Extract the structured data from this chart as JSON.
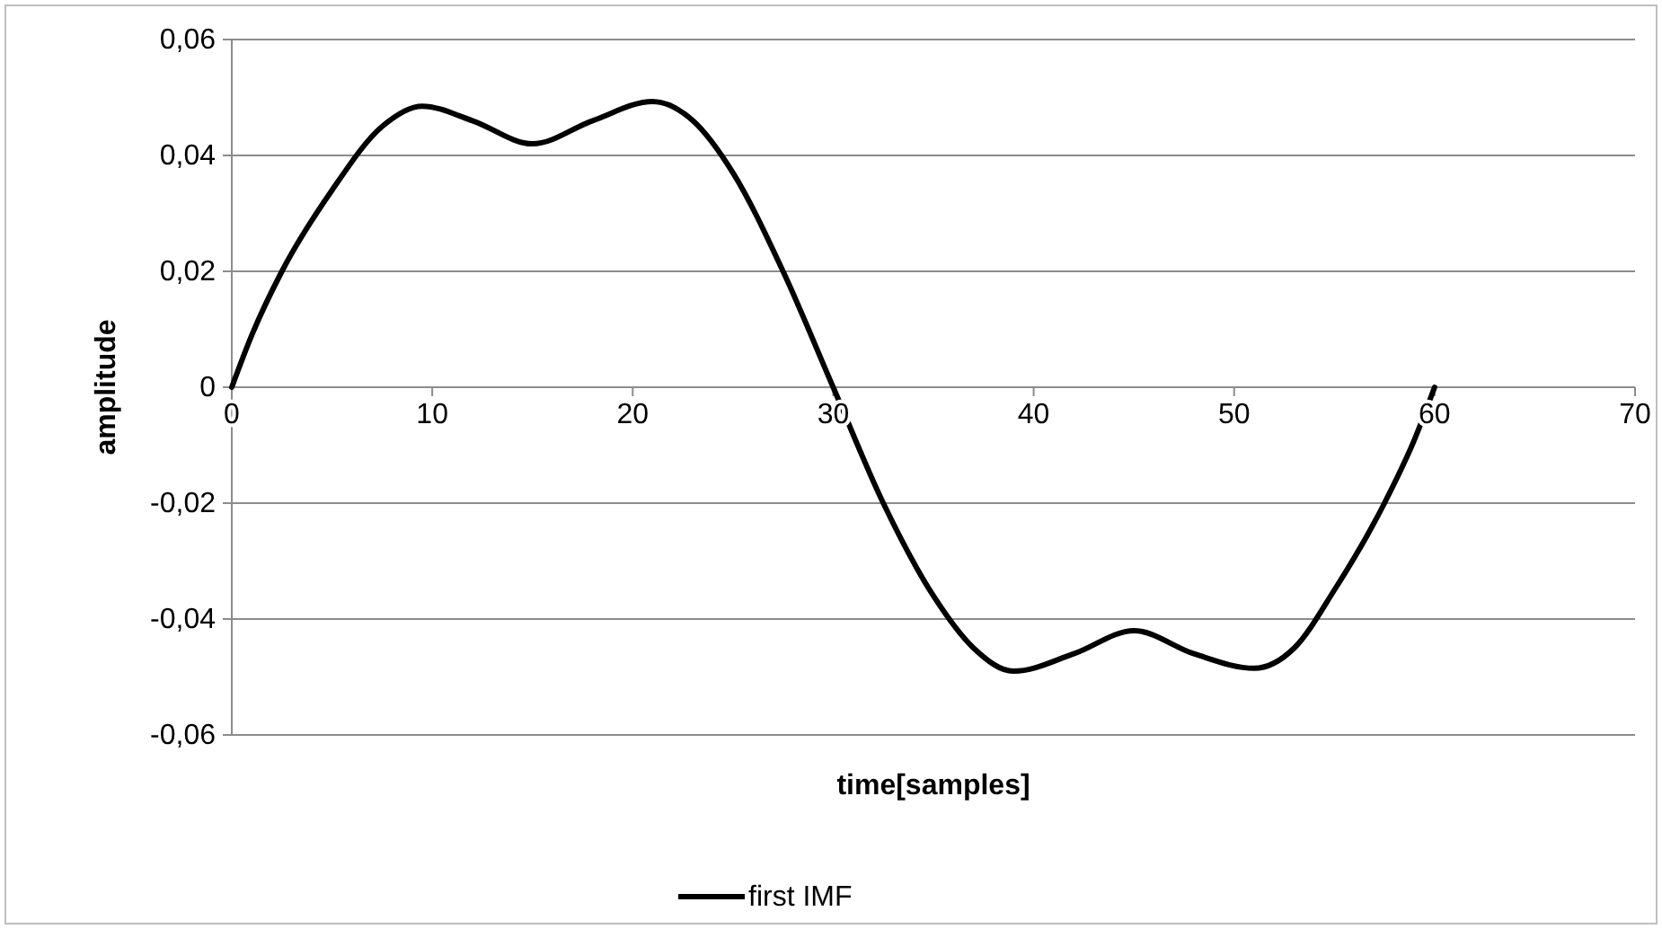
{
  "chart_data": {
    "type": "line",
    "xlabel": "time[samples]",
    "ylabel": "amplitude",
    "xlim": [
      0,
      70
    ],
    "xticks": [
      0,
      10,
      20,
      30,
      40,
      50,
      60,
      70
    ],
    "ylim": [
      -0.06,
      0.06
    ],
    "yticks": [
      {
        "value": -0.06,
        "label": "-0,06"
      },
      {
        "value": -0.04,
        "label": "-0,04"
      },
      {
        "value": -0.02,
        "label": "-0,02"
      },
      {
        "value": 0,
        "label": "0"
      },
      {
        "value": 0.02,
        "label": "0,02"
      },
      {
        "value": 0.04,
        "label": "0,04"
      },
      {
        "value": 0.06,
        "label": "0,06"
      }
    ],
    "grid": "y",
    "legend": "bottom",
    "line_style": "solid",
    "series": [
      {
        "name": "first IMF",
        "color": "#000000",
        "x": [
          0,
          1,
          2.5,
          5,
          7.5,
          9.5,
          12,
          15,
          18,
          21,
          23,
          25,
          27.5,
          30,
          32.5,
          35,
          37,
          39,
          42,
          45,
          48,
          51,
          53,
          55,
          57.5,
          59,
          60
        ],
        "values": [
          0,
          0.009,
          0.02,
          0.034,
          0.045,
          0.0485,
          0.046,
          0.042,
          0.046,
          0.0493,
          0.046,
          0.037,
          0.02,
          0,
          -0.02,
          -0.036,
          -0.045,
          -0.049,
          -0.046,
          -0.042,
          -0.046,
          -0.0485,
          -0.045,
          -0.035,
          -0.02,
          -0.009,
          0
        ]
      }
    ]
  }
}
